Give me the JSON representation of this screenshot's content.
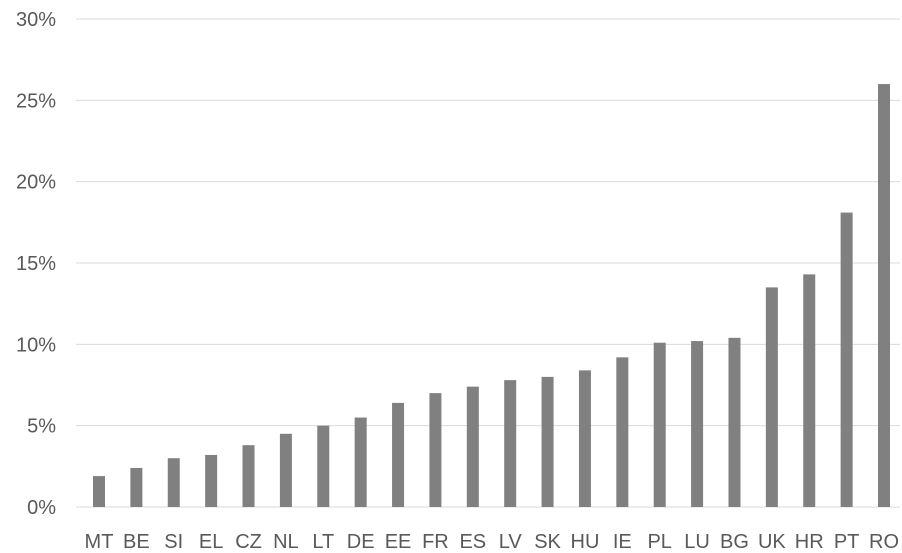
{
  "chart_data": {
    "type": "bar",
    "categories": [
      "MT",
      "BE",
      "SI",
      "EL",
      "CZ",
      "NL",
      "LT",
      "DE",
      "EE",
      "FR",
      "ES",
      "LV",
      "SK",
      "HU",
      "IE",
      "PL",
      "LU",
      "BG",
      "UK",
      "HR",
      "PT",
      "RO"
    ],
    "values": [
      1.9,
      2.4,
      3.0,
      3.2,
      3.8,
      4.5,
      5.0,
      5.5,
      6.4,
      7.0,
      7.4,
      7.8,
      8.0,
      8.4,
      9.2,
      10.1,
      10.2,
      10.4,
      13.5,
      14.3,
      18.1,
      26.0
    ],
    "ylim": [
      0,
      30
    ],
    "yticks": [
      0,
      5,
      10,
      15,
      20,
      25,
      30
    ],
    "ytick_labels": [
      "0%",
      "5%",
      "10%",
      "15%",
      "20%",
      "25%",
      "30%"
    ],
    "title": "",
    "xlabel": "",
    "ylabel": "",
    "grid": true,
    "bar_color": "#808080",
    "grid_color": "#d9d9d9",
    "label_color": "#595959"
  }
}
